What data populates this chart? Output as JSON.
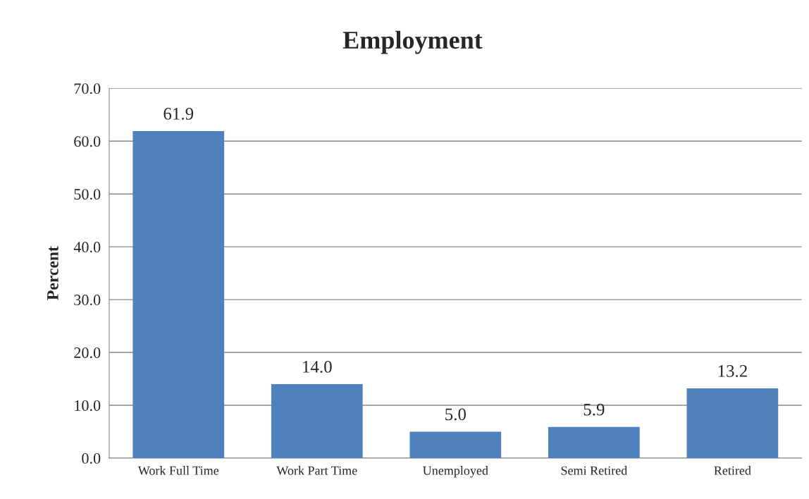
{
  "chart_data": {
    "type": "bar",
    "title": "Employment",
    "ylabel": "Percent",
    "categories": [
      "Work Full Time",
      "Work Part Time",
      "Unemployed",
      "Semi Retired",
      "Retired"
    ],
    "values": [
      61.9,
      14.0,
      5.0,
      5.9,
      13.2
    ],
    "value_labels": [
      "61.9",
      "14.0",
      "5.0",
      "5.9",
      "13.2"
    ],
    "color": "#4f81bd",
    "ylim": [
      0,
      70
    ],
    "yticks": [
      {
        "value": 0,
        "label": "0.0"
      },
      {
        "value": 10,
        "label": "10.0"
      },
      {
        "value": 20,
        "label": "20.0"
      },
      {
        "value": 30,
        "label": "30.0"
      },
      {
        "value": 40,
        "label": "40.0"
      },
      {
        "value": 50,
        "label": "50.0"
      },
      {
        "value": 60,
        "label": "60.0"
      },
      {
        "value": 70,
        "label": "70.0"
      }
    ],
    "grid": "y"
  }
}
